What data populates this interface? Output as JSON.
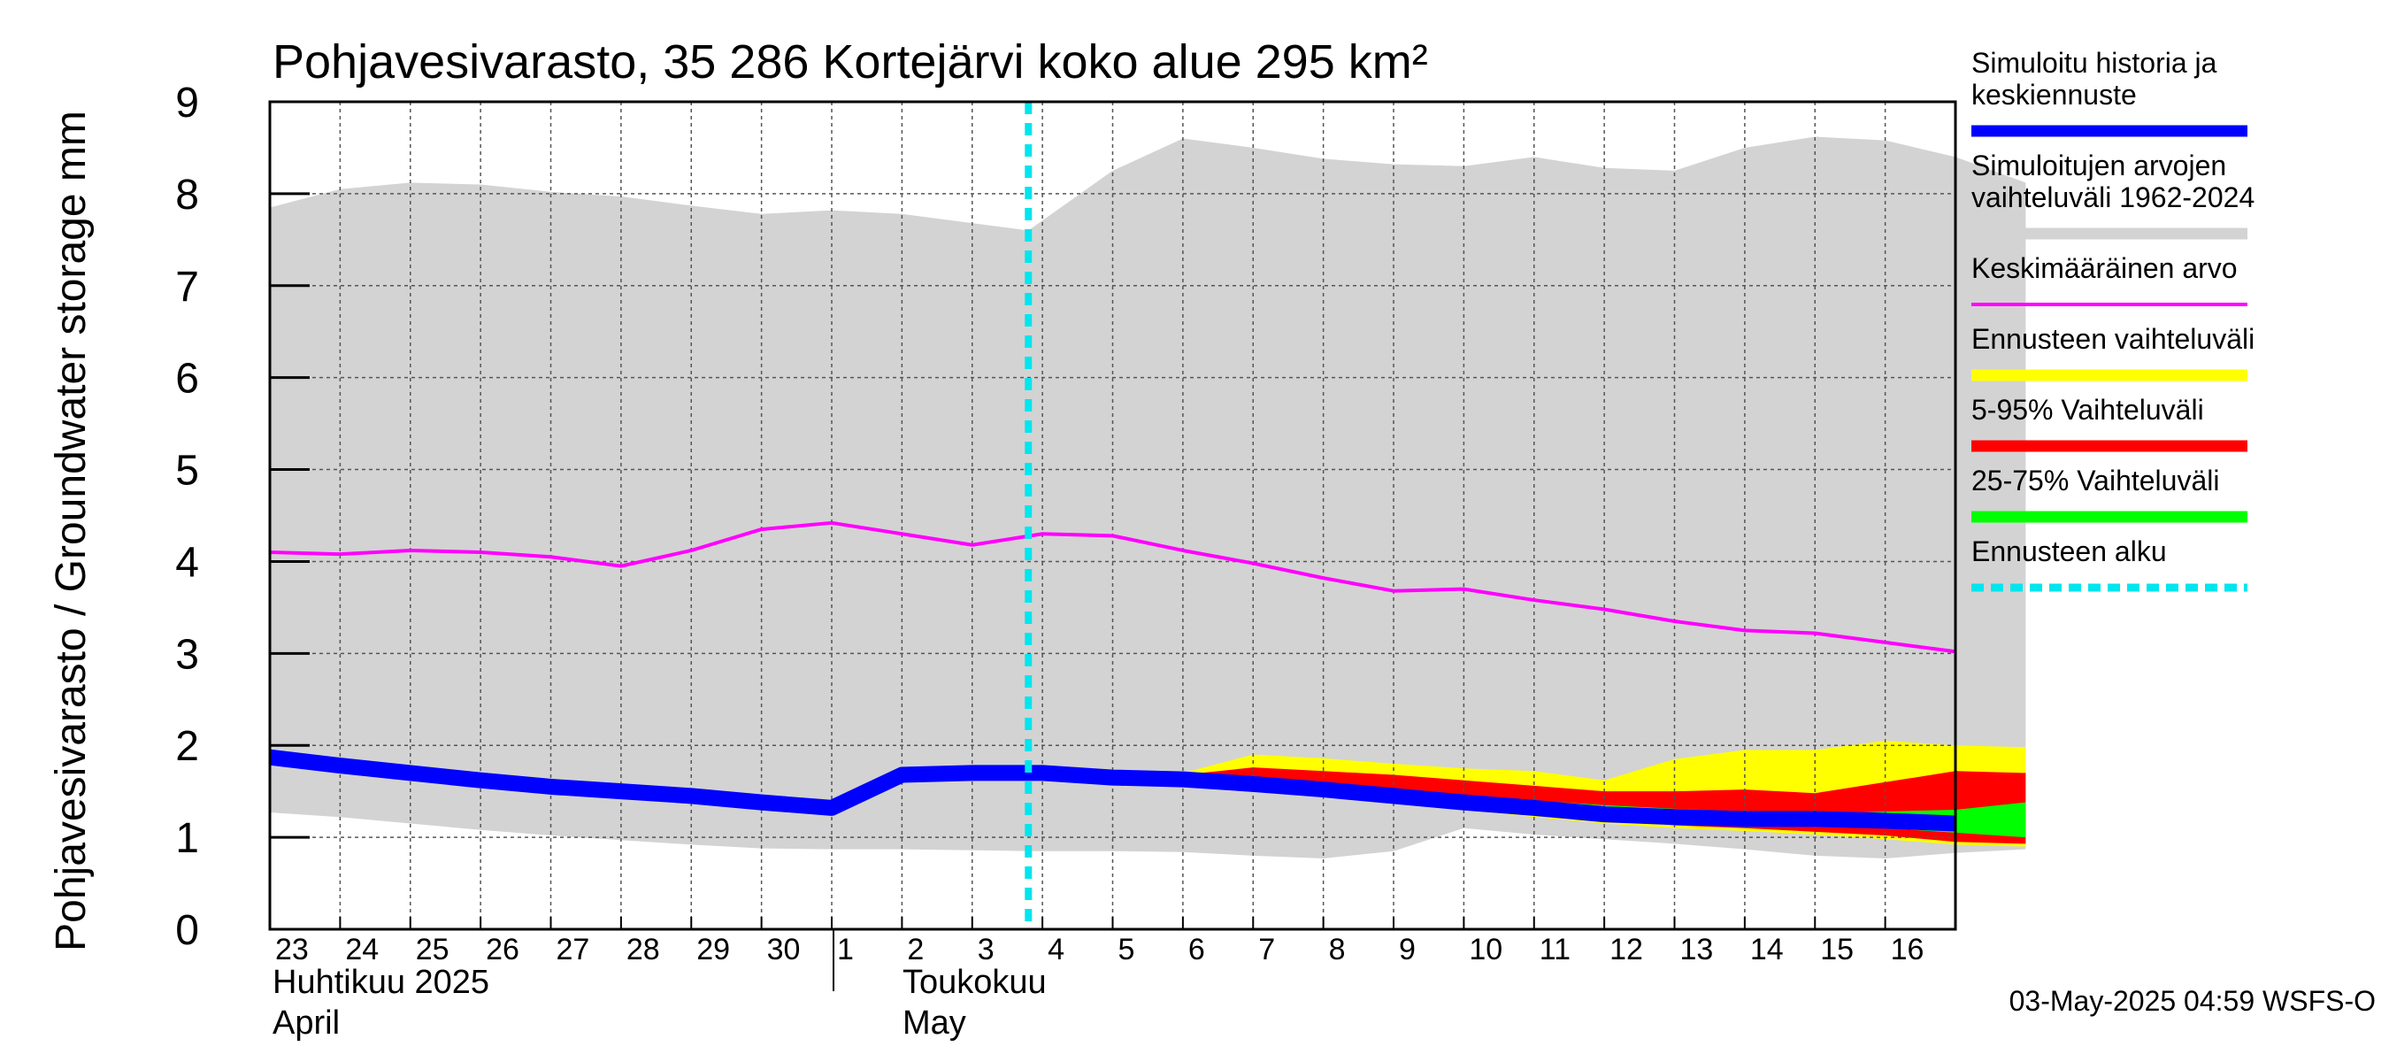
{
  "title": "Pohjavesivarasto, 35 286 Kortejärvi koko alue 295 km²",
  "y_axis_title": "Pohjavesivarasto / Groundwater storage   mm",
  "footer": "03-May-2025 04:59 WSFS-O",
  "month_labels": {
    "april_fi": "Huhtikuu  2025",
    "april_en": "April",
    "may_fi": "Toukokuu",
    "may_en": "May"
  },
  "legend": [
    {
      "label": "Simuloitu historia ja\nkeskiennuste",
      "color": "#0000ff",
      "style": "thick"
    },
    {
      "label": "Simuloitujen arvojen\nvaihteluväli 1962-2024",
      "color": "#d3d3d3",
      "style": "band"
    },
    {
      "label": "Keskimääräinen arvo",
      "color": "#ff00ff",
      "style": "thin"
    },
    {
      "label": "Ennusteen vaihteluväli",
      "color": "#ffff00",
      "style": "band"
    },
    {
      "label": "5-95% Vaihteluväli",
      "color": "#ff0000",
      "style": "band"
    },
    {
      "label": "25-75% Vaihteluväli",
      "color": "#00ff00",
      "style": "band"
    },
    {
      "label": "Ennusteen alku",
      "color": "#00e5ee",
      "style": "dotted"
    }
  ],
  "chart_data": {
    "type": "area",
    "y_range": [
      0,
      9
    ],
    "y_ticks": [
      0,
      1,
      2,
      3,
      4,
      5,
      6,
      7,
      8,
      9
    ],
    "grid": true,
    "legend_position": "right",
    "x_day_labels": [
      "23",
      "24",
      "25",
      "26",
      "27",
      "28",
      "29",
      "30",
      "1",
      "2",
      "3",
      "4",
      "5",
      "6",
      "7",
      "8",
      "9",
      "10",
      "11",
      "12",
      "13",
      "14",
      "15",
      "16"
    ],
    "forecast_start_index": 10.8,
    "series": [
      {
        "name": "Simuloitujen arvojen vaihteluväli 1962-2024",
        "upper": [
          [
            0,
            7.85
          ],
          [
            1,
            8.05
          ],
          [
            2,
            8.12
          ],
          [
            3,
            8.1
          ],
          [
            4,
            8.02
          ],
          [
            5,
            7.97
          ],
          [
            6,
            7.87
          ],
          [
            7,
            7.78
          ],
          [
            8,
            7.82
          ],
          [
            9,
            7.78
          ],
          [
            10.8,
            7.6
          ],
          [
            12,
            8.25
          ],
          [
            13,
            8.6
          ],
          [
            14,
            8.5
          ],
          [
            15,
            8.38
          ],
          [
            16,
            8.32
          ],
          [
            17,
            8.3
          ],
          [
            18,
            8.4
          ],
          [
            19,
            8.28
          ],
          [
            20,
            8.25
          ],
          [
            21,
            8.5
          ],
          [
            22,
            8.62
          ],
          [
            23,
            8.58
          ],
          [
            24,
            8.4
          ],
          [
            25,
            8.12
          ]
        ],
        "lower": [
          [
            0,
            1.27
          ],
          [
            1,
            1.22
          ],
          [
            2,
            1.15
          ],
          [
            3,
            1.08
          ],
          [
            4,
            1.02
          ],
          [
            5,
            0.97
          ],
          [
            6,
            0.92
          ],
          [
            7,
            0.88
          ],
          [
            8,
            0.87
          ],
          [
            9,
            0.87
          ],
          [
            10.8,
            0.85
          ],
          [
            12,
            0.85
          ],
          [
            13,
            0.84
          ],
          [
            14,
            0.8
          ],
          [
            15,
            0.77
          ],
          [
            16,
            0.85
          ],
          [
            17,
            1.1
          ],
          [
            18,
            1.03
          ],
          [
            19,
            0.98
          ],
          [
            20,
            0.93
          ],
          [
            21,
            0.87
          ],
          [
            22,
            0.8
          ],
          [
            23,
            0.77
          ],
          [
            24,
            0.83
          ],
          [
            25,
            0.87
          ]
        ]
      },
      {
        "name": "Ennusteen vaihteluväli",
        "upper": [
          [
            10.8,
            1.7
          ],
          [
            12,
            1.7
          ],
          [
            13,
            1.7
          ],
          [
            14,
            1.9
          ],
          [
            15,
            1.86
          ],
          [
            16,
            1.8
          ],
          [
            17,
            1.75
          ],
          [
            18,
            1.72
          ],
          [
            19,
            1.62
          ],
          [
            20,
            1.85
          ],
          [
            21,
            1.95
          ],
          [
            22,
            1.95
          ],
          [
            23,
            2.05
          ],
          [
            24,
            2.0
          ],
          [
            25,
            1.98
          ]
        ],
        "lower": [
          [
            10.8,
            1.65
          ],
          [
            12,
            1.65
          ],
          [
            13,
            1.58
          ],
          [
            14,
            1.5
          ],
          [
            15,
            1.45
          ],
          [
            16,
            1.38
          ],
          [
            17,
            1.3
          ],
          [
            18,
            1.22
          ],
          [
            19,
            1.15
          ],
          [
            20,
            1.1
          ],
          [
            21,
            1.07
          ],
          [
            22,
            1.03
          ],
          [
            23,
            0.98
          ],
          [
            24,
            0.92
          ],
          [
            25,
            0.9
          ]
        ]
      },
      {
        "name": "5-95% Vaihteluväli",
        "upper": [
          [
            10.8,
            1.68
          ],
          [
            12,
            1.68
          ],
          [
            13,
            1.68
          ],
          [
            14,
            1.76
          ],
          [
            15,
            1.72
          ],
          [
            16,
            1.68
          ],
          [
            17,
            1.62
          ],
          [
            18,
            1.56
          ],
          [
            19,
            1.5
          ],
          [
            20,
            1.5
          ],
          [
            21,
            1.52
          ],
          [
            22,
            1.48
          ],
          [
            23,
            1.6
          ],
          [
            24,
            1.72
          ],
          [
            25,
            1.7
          ]
        ],
        "lower": [
          [
            10.8,
            1.65
          ],
          [
            12,
            1.65
          ],
          [
            13,
            1.6
          ],
          [
            14,
            1.55
          ],
          [
            15,
            1.48
          ],
          [
            16,
            1.42
          ],
          [
            17,
            1.35
          ],
          [
            18,
            1.27
          ],
          [
            19,
            1.2
          ],
          [
            20,
            1.13
          ],
          [
            21,
            1.1
          ],
          [
            22,
            1.06
          ],
          [
            23,
            1.02
          ],
          [
            24,
            0.95
          ],
          [
            25,
            0.93
          ]
        ]
      },
      {
        "name": "25-75% Vaihteluväli",
        "upper": [
          [
            10.8,
            1.67
          ],
          [
            12,
            1.67
          ],
          [
            13,
            1.65
          ],
          [
            14,
            1.63
          ],
          [
            15,
            1.58
          ],
          [
            16,
            1.52
          ],
          [
            17,
            1.46
          ],
          [
            18,
            1.4
          ],
          [
            19,
            1.35
          ],
          [
            20,
            1.31
          ],
          [
            21,
            1.28
          ],
          [
            22,
            1.25
          ],
          [
            23,
            1.28
          ],
          [
            24,
            1.3
          ],
          [
            25,
            1.38
          ]
        ],
        "lower": [
          [
            10.8,
            1.66
          ],
          [
            12,
            1.66
          ],
          [
            13,
            1.62
          ],
          [
            14,
            1.57
          ],
          [
            15,
            1.5
          ],
          [
            16,
            1.45
          ],
          [
            17,
            1.38
          ],
          [
            18,
            1.31
          ],
          [
            19,
            1.25
          ],
          [
            20,
            1.18
          ],
          [
            21,
            1.14
          ],
          [
            22,
            1.12
          ],
          [
            23,
            1.1
          ],
          [
            24,
            1.05
          ],
          [
            25,
            1.0
          ]
        ]
      },
      {
        "name": "Keskimääräinen arvo",
        "points": [
          [
            0,
            4.1
          ],
          [
            1,
            4.08
          ],
          [
            2,
            4.12
          ],
          [
            3,
            4.1
          ],
          [
            4,
            4.05
          ],
          [
            5,
            3.95
          ],
          [
            6,
            4.12
          ],
          [
            7,
            4.35
          ],
          [
            8,
            4.42
          ],
          [
            9,
            4.3
          ],
          [
            10,
            4.18
          ],
          [
            11,
            4.3
          ],
          [
            12,
            4.28
          ],
          [
            13,
            4.12
          ],
          [
            14,
            3.98
          ],
          [
            15,
            3.82
          ],
          [
            16,
            3.68
          ],
          [
            17,
            3.7
          ],
          [
            18,
            3.58
          ],
          [
            19,
            3.48
          ],
          [
            20,
            3.35
          ],
          [
            21,
            3.25
          ],
          [
            22,
            3.22
          ],
          [
            23,
            3.12
          ],
          [
            24,
            3.02
          ]
        ]
      },
      {
        "name": "Simuloitu historia ja keskiennuste",
        "points": [
          [
            0,
            1.87
          ],
          [
            1,
            1.78
          ],
          [
            2,
            1.7
          ],
          [
            3,
            1.62
          ],
          [
            4,
            1.55
          ],
          [
            5,
            1.5
          ],
          [
            6,
            1.45
          ],
          [
            7,
            1.38
          ],
          [
            8,
            1.32
          ],
          [
            9,
            1.68
          ],
          [
            10,
            1.7
          ],
          [
            11,
            1.7
          ],
          [
            12,
            1.65
          ],
          [
            13,
            1.63
          ],
          [
            14,
            1.58
          ],
          [
            15,
            1.52
          ],
          [
            16,
            1.45
          ],
          [
            17,
            1.38
          ],
          [
            18,
            1.32
          ],
          [
            19,
            1.25
          ],
          [
            20,
            1.22
          ],
          [
            21,
            1.2
          ],
          [
            22,
            1.2
          ],
          [
            23,
            1.18
          ],
          [
            24,
            1.15
          ]
        ]
      }
    ]
  }
}
